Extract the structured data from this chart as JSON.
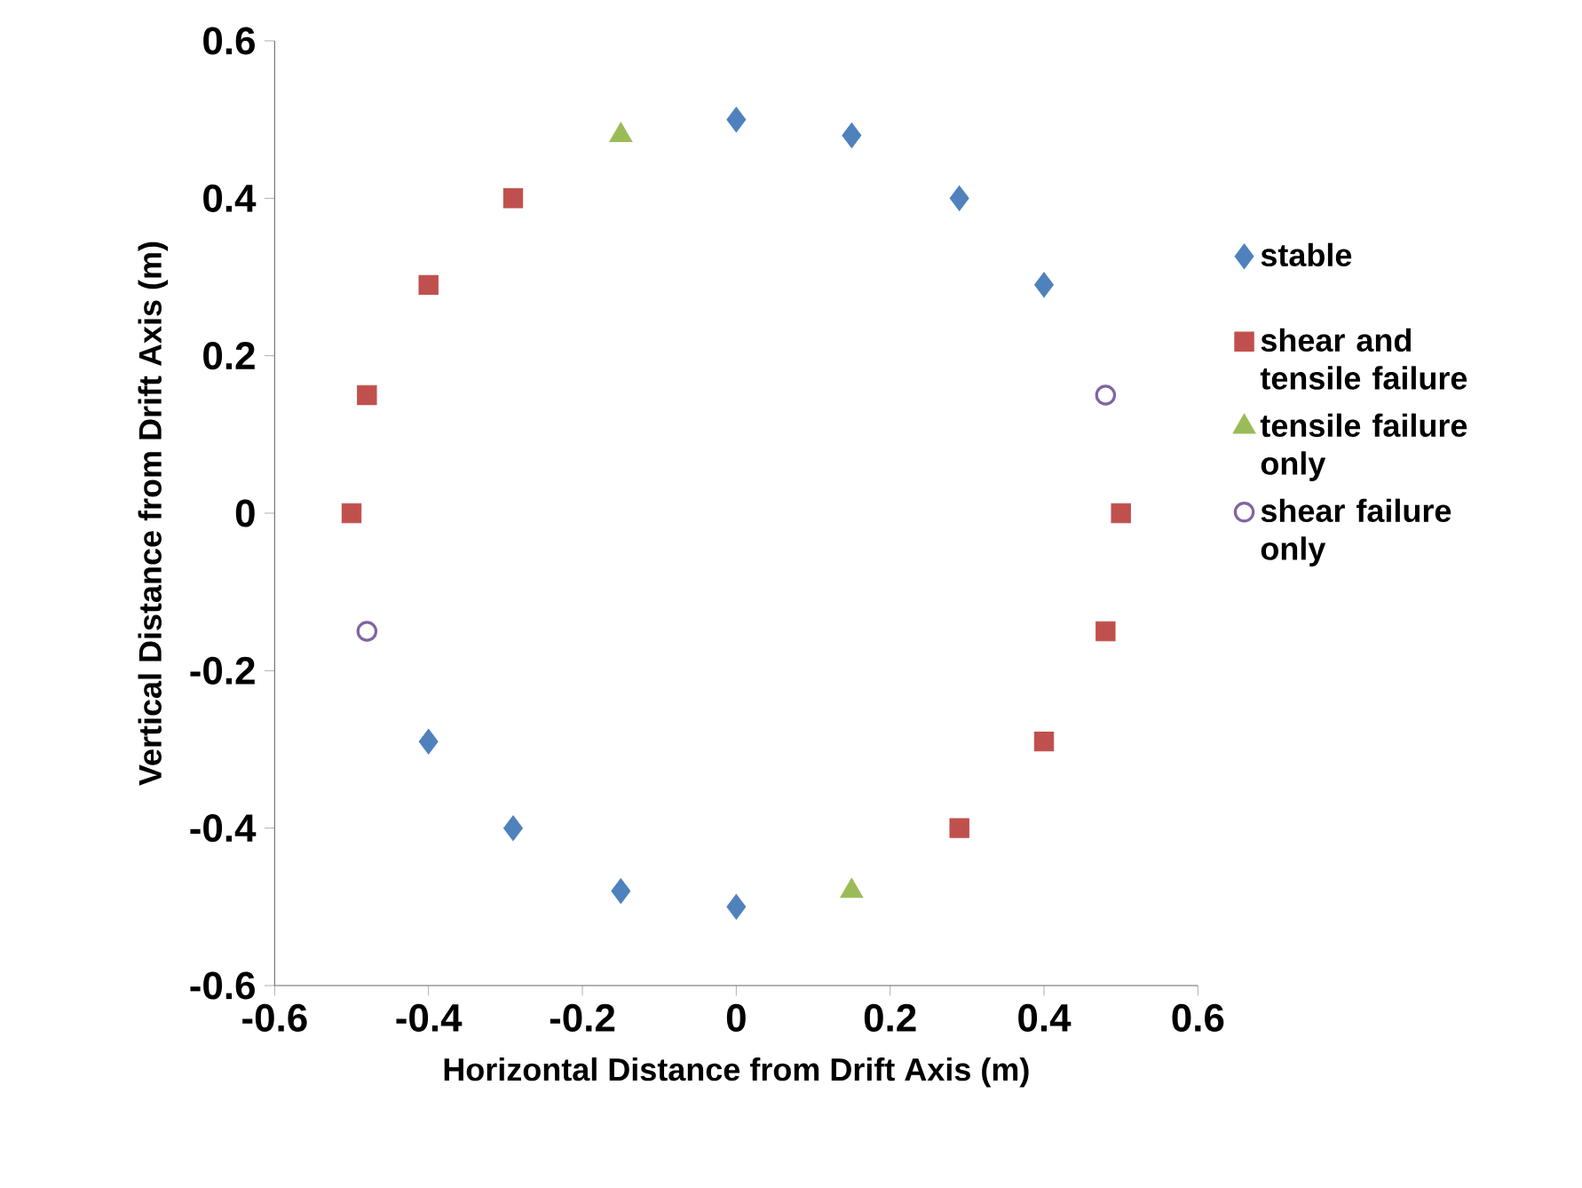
{
  "chart_data": {
    "type": "scatter",
    "xlabel": "Horizontal Distance from Drift Axis (m)",
    "ylabel": "Vertical Distance from Drift Axis (m)",
    "xlim": [
      -0.6,
      0.6
    ],
    "ylim": [
      -0.6,
      0.6
    ],
    "xticks": [
      -0.6,
      -0.4,
      -0.2,
      0,
      0.2,
      0.4,
      0.6
    ],
    "yticks": [
      -0.6,
      -0.4,
      -0.2,
      0,
      0.2,
      0.4,
      0.6
    ],
    "grid": false,
    "legend": "right",
    "series": [
      {
        "name": "stable",
        "color": "#4f81bd",
        "marker": "diamond",
        "x": [
          0,
          0.15,
          0.29,
          0.4,
          -0.4,
          -0.29,
          -0.15,
          0
        ],
        "values": [
          0.5,
          0.48,
          0.4,
          0.29,
          -0.29,
          -0.4,
          -0.48,
          -0.5
        ]
      },
      {
        "name": "shear and tensile failure",
        "color": "#c0504d",
        "marker": "square",
        "x": [
          -0.29,
          -0.4,
          -0.48,
          -0.5,
          0.5,
          0.48,
          0.4,
          0.29
        ],
        "values": [
          0.4,
          0.29,
          0.15,
          0,
          0,
          -0.15,
          -0.29,
          -0.4
        ]
      },
      {
        "name": "tensile failure only",
        "color": "#9bbb59",
        "marker": "triangle",
        "x": [
          -0.15,
          0.15
        ],
        "values": [
          0.48,
          -0.48
        ]
      },
      {
        "name": "shear failure only",
        "color": "#8064a2",
        "marker": "circle",
        "x": [
          0.48,
          -0.48
        ],
        "values": [
          0.15,
          -0.15
        ]
      }
    ]
  }
}
